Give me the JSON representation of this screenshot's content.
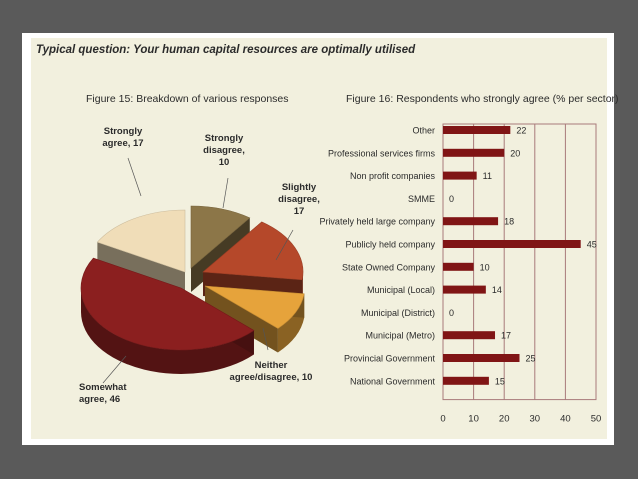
{
  "question": "Typical question: Your human capital resources are optimally utilised",
  "colors": {
    "strongly_agree": "#f0ddb8",
    "strongly_disagree": "#8c7648",
    "slightly_disagree": "#b5482a",
    "neither": "#e6a33b",
    "somewhat_agree": "#8b1f1f",
    "bar": "#801515",
    "grid": "#a87a7a"
  },
  "chart_data": [
    {
      "type": "pie",
      "title": "Figure 15: Breakdown of various responses",
      "slices": [
        {
          "label_lines": [
            "Strongly",
            "agree, 17"
          ],
          "value": 17,
          "color": "#f0ddb8"
        },
        {
          "label_lines": [
            "Strongly",
            "disagree,",
            "10"
          ],
          "value": 10,
          "color": "#8c7648"
        },
        {
          "label_lines": [
            "Slightly",
            "disagree,",
            "17"
          ],
          "value": 17,
          "color": "#b5482a"
        },
        {
          "label_lines": [
            "Neither",
            "agree/disagree, 10"
          ],
          "value": 10,
          "color": "#e6a33b"
        },
        {
          "label_lines": [
            "Somewhat",
            "agree, 46"
          ],
          "value": 46,
          "color": "#8b1f1f"
        }
      ]
    },
    {
      "type": "bar",
      "orientation": "horizontal",
      "title": "Figure 16: Respondents who strongly agree (% per sector)",
      "categories": [
        "Other",
        "Professional services firms",
        "Non profit companies",
        "SMME",
        "Privately held large company",
        "Publicly held company",
        "State Owned Company",
        "Municipal (Local)",
        "Municipal (District)",
        "Municipal (Metro)",
        "Provincial Government",
        "National Government"
      ],
      "values": [
        22,
        20,
        11,
        0,
        18,
        45,
        10,
        14,
        0,
        17,
        25,
        15
      ],
      "xlim": [
        0,
        50
      ],
      "xticks": [
        "0",
        "10",
        "20",
        "30",
        "40",
        "50"
      ],
      "grid": true
    }
  ]
}
